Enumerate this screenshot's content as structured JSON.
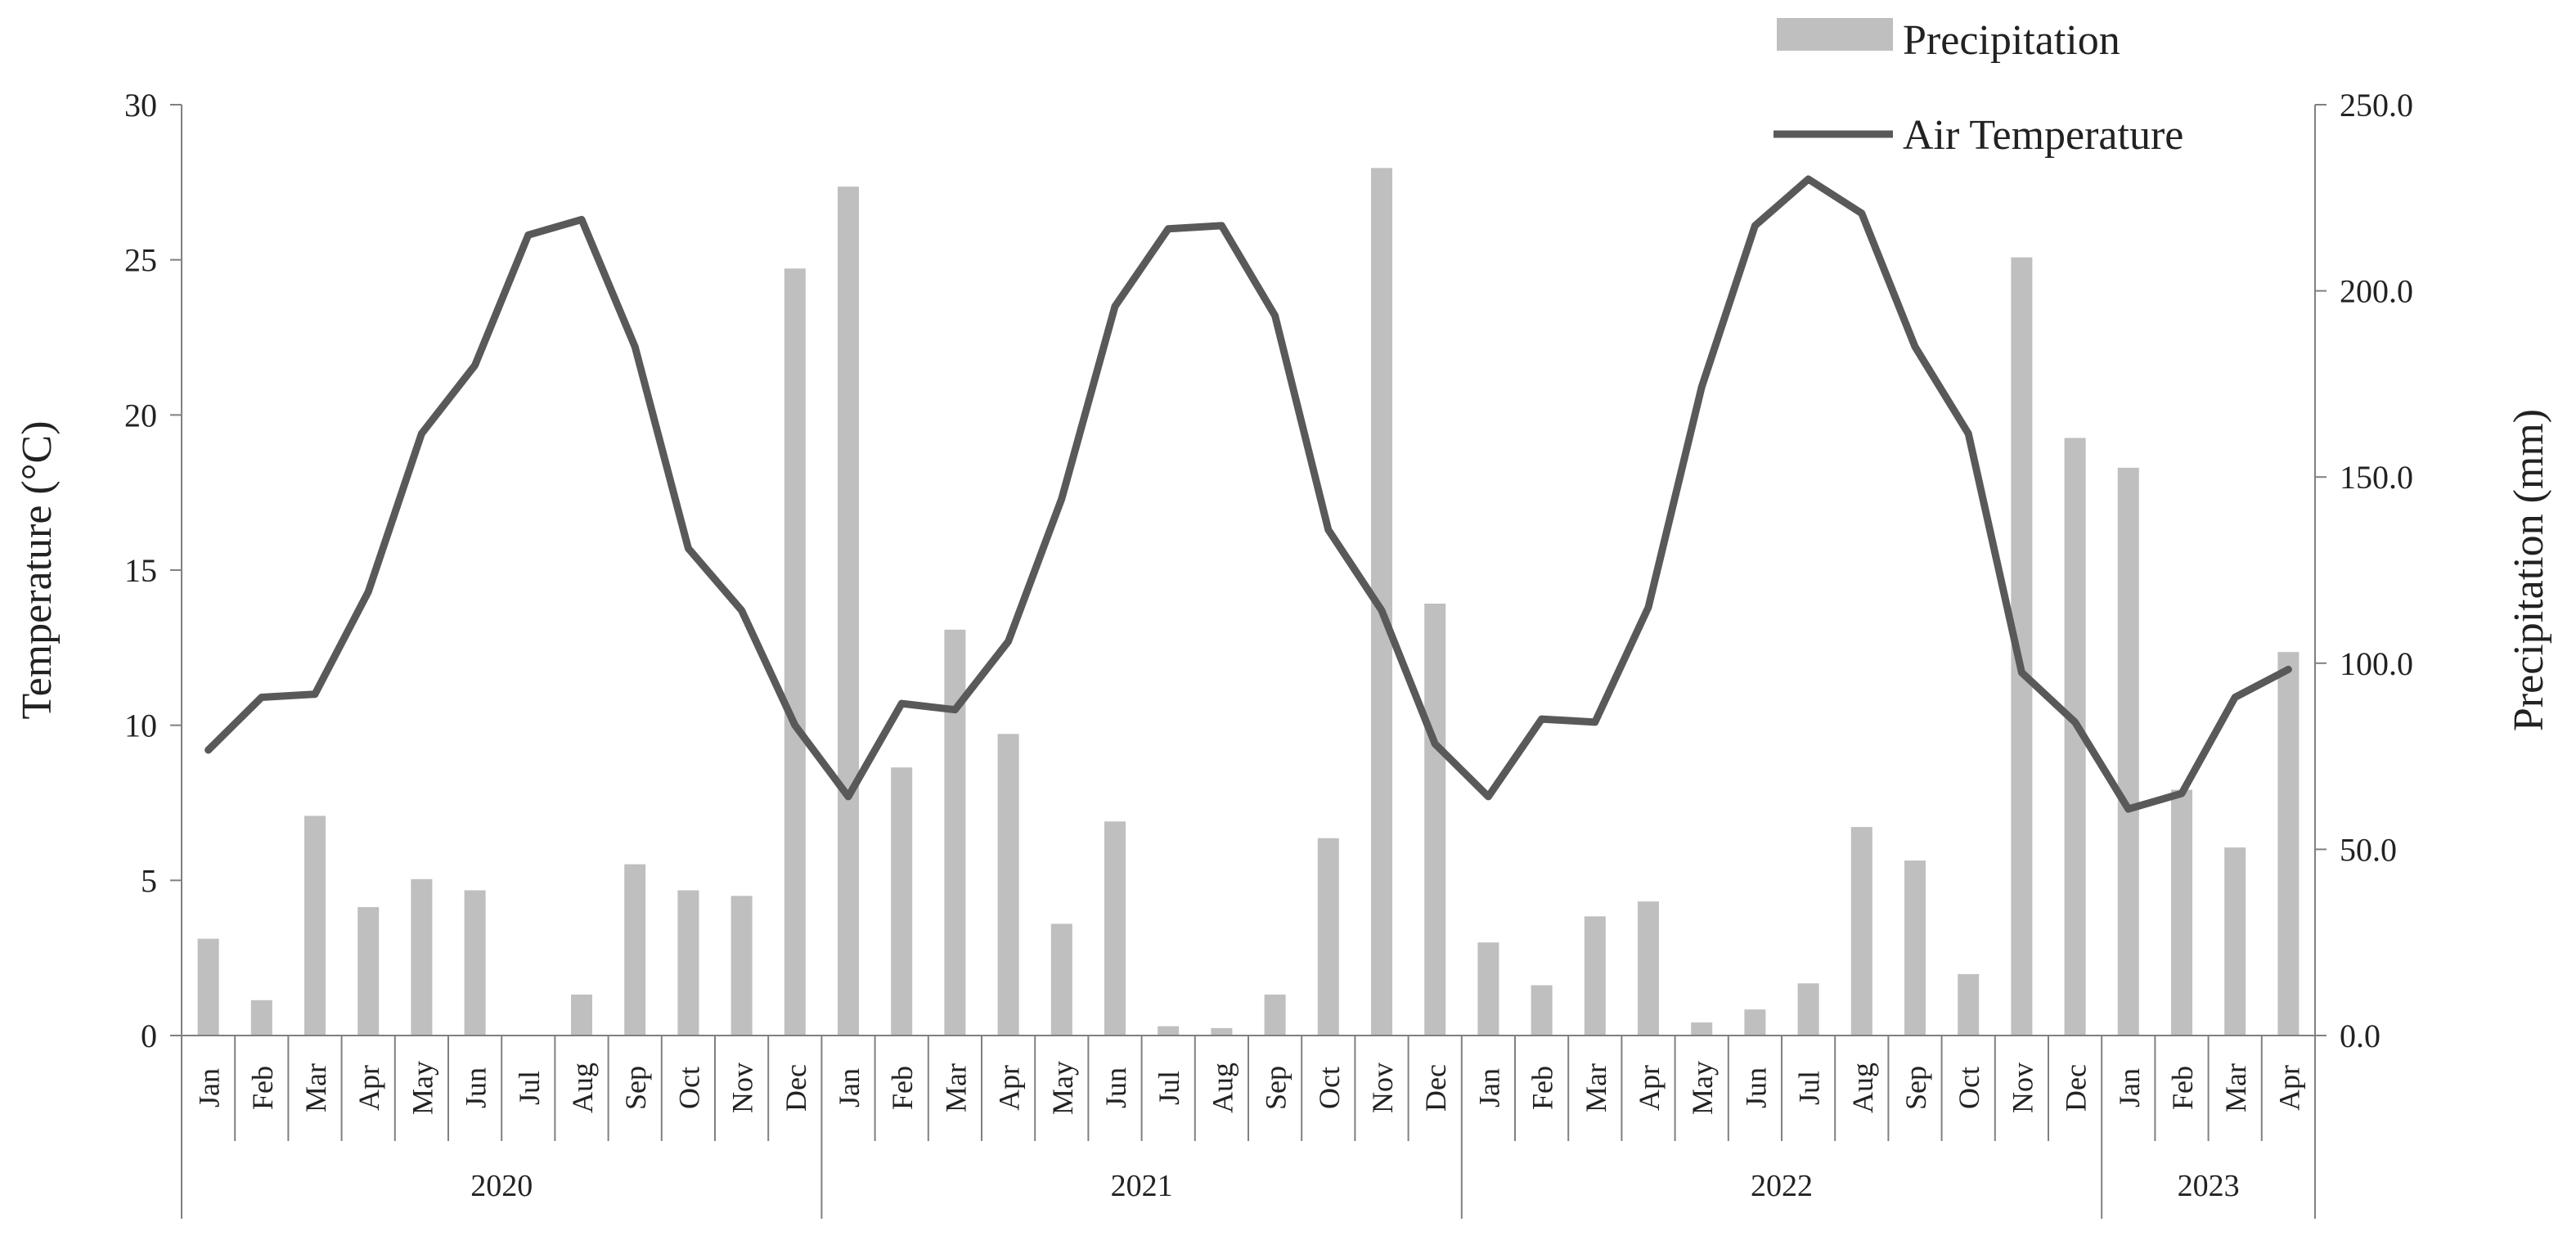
{
  "chart_data": {
    "type": "bar+line",
    "title": "",
    "months": [
      "Jan",
      "Feb",
      "Mar",
      "Apr",
      "May",
      "Jun",
      "Jul",
      "Aug",
      "Sep",
      "Oct",
      "Nov",
      "Dec",
      "Jan",
      "Feb",
      "Mar",
      "Apr",
      "May",
      "Jun",
      "Jul",
      "Aug",
      "Sep",
      "Oct",
      "Nov",
      "Dec",
      "Jan",
      "Feb",
      "Mar",
      "Apr",
      "May",
      "Jun",
      "Jul",
      "Aug",
      "Sep",
      "Oct",
      "Nov",
      "Dec",
      "Jan",
      "Feb",
      "Mar",
      "Apr"
    ],
    "years": [
      {
        "label": "2020",
        "months": 12
      },
      {
        "label": "2021",
        "months": 12
      },
      {
        "label": "2022",
        "months": 12
      },
      {
        "label": "2023",
        "months": 4
      }
    ],
    "series": [
      {
        "name": "Precipitation",
        "type": "bar",
        "axis": "right",
        "color": "#bfbfbf",
        "values": [
          26,
          9.5,
          59,
          34.5,
          42,
          39,
          0,
          11,
          46,
          39,
          37.5,
          206,
          228,
          72,
          109,
          81,
          30,
          57.5,
          2.5,
          2,
          11,
          53,
          233,
          116,
          25,
          13.5,
          32,
          36,
          3.5,
          7,
          14,
          56,
          47,
          16.5,
          209,
          160.5,
          152.5,
          66,
          50.5,
          103
        ]
      },
      {
        "name": "Air Temperature",
        "type": "line",
        "axis": "left",
        "color": "#595959",
        "values": [
          9.2,
          10.9,
          11.0,
          14.3,
          19.4,
          21.6,
          25.8,
          26.3,
          22.2,
          15.7,
          13.7,
          10.0,
          7.7,
          10.7,
          10.5,
          12.7,
          17.3,
          23.5,
          26.0,
          26.1,
          23.2,
          16.3,
          13.7,
          9.4,
          7.7,
          10.2,
          10.1,
          13.8,
          20.9,
          26.1,
          27.6,
          26.5,
          22.2,
          19.4,
          11.7,
          10.1,
          7.3,
          7.8,
          10.9,
          11.8
        ]
      }
    ],
    "y_left": {
      "label": "Temperature (°C)",
      "min": 0,
      "max": 30,
      "ticks": [
        "0",
        "5",
        "10",
        "15",
        "20",
        "25",
        "30"
      ]
    },
    "y_right": {
      "label": "Precipitation (mm)",
      "min": 0,
      "max": 250,
      "ticks": [
        "0.0",
        "50.0",
        "100.0",
        "150.0",
        "200.0",
        "250.0"
      ]
    },
    "legend": {
      "position": "top-right",
      "items": [
        "Precipitation",
        "Air Temperature"
      ]
    },
    "grid": false
  }
}
